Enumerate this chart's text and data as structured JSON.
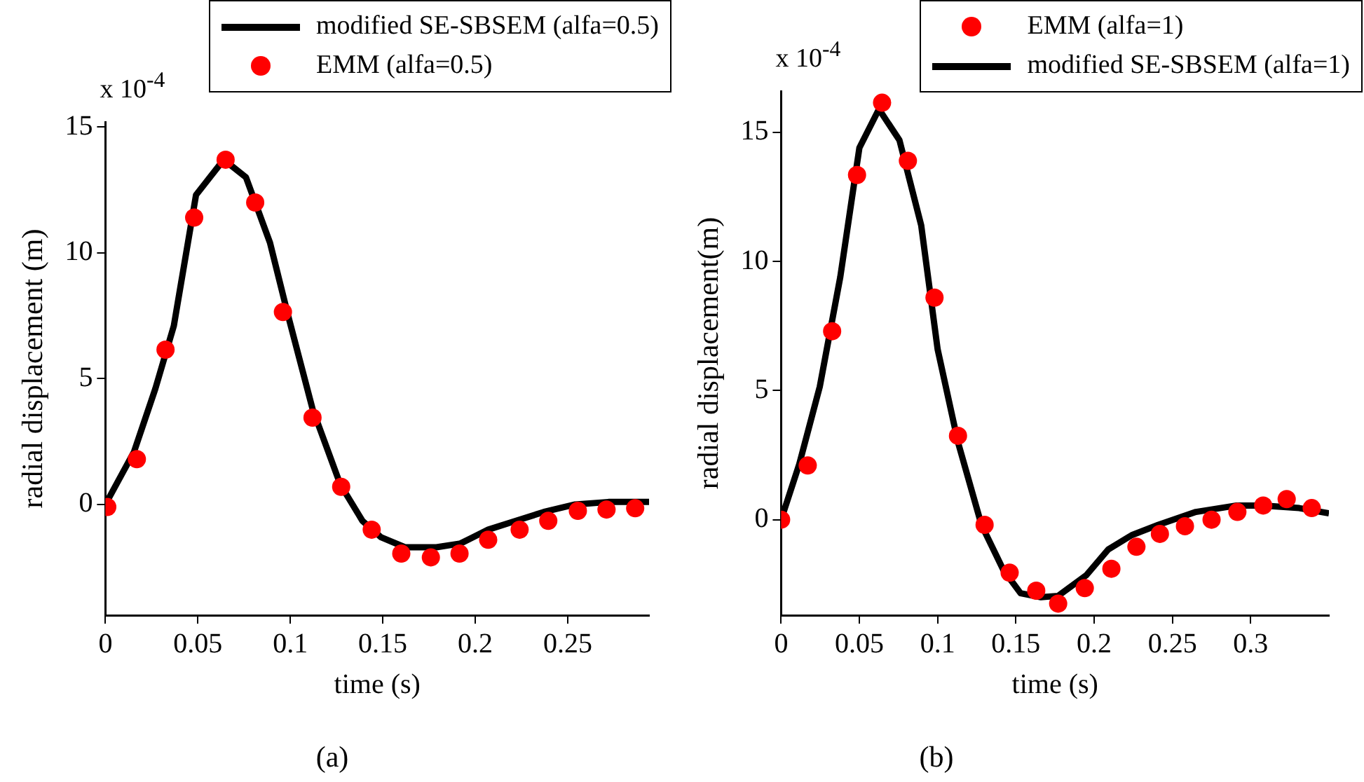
{
  "chart_data": [
    {
      "type": "line",
      "xlabel": "time (s)",
      "ylabel": "radial displacement (m)",
      "annotations": [
        "x 10$^{-4}$",
        "(a)"
      ],
      "xlim": [
        0,
        0.294
      ],
      "xticks": [
        0,
        0.05,
        0.1,
        0.15,
        0.2,
        0.25
      ],
      "ylim": [
        -4.4,
        15.2
      ],
      "yticks": [
        0,
        5,
        10,
        15
      ],
      "grid": false,
      "legend": "top right",
      "series": [
        {
          "name": "modified SE-SBSEM (alfa=0.5)",
          "marker": "none",
          "color": "#000000",
          "x": [
            0,
            0.0155,
            0.027,
            0.037,
            0.049,
            0.064,
            0.076,
            0.089,
            0.099,
            0.112,
            0.127,
            0.139,
            0.149,
            0.162,
            0.179,
            0.192,
            0.207,
            0.222,
            0.237,
            0.254,
            0.272,
            0.294
          ],
          "values": [
            0,
            2.1,
            4.6,
            7.1,
            12.3,
            13.7,
            13.0,
            10.4,
            7.45,
            3.8,
            0.8,
            -0.65,
            -1.3,
            -1.7,
            -1.7,
            -1.55,
            -1.0,
            -0.65,
            -0.3,
            0,
            0.1,
            0.1
          ]
        },
        {
          "name": "EMM (alfa=0.5)",
          "type": "scatter",
          "marker": "circle",
          "color": "#ff0000",
          "x": [
            0.001,
            0.017,
            0.0325,
            0.048,
            0.065,
            0.081,
            0.096,
            0.112,
            0.1275,
            0.144,
            0.16,
            0.176,
            0.1915,
            0.207,
            0.224,
            0.2395,
            0.2555,
            0.271,
            0.2865
          ],
          "values": [
            -0.1,
            1.8,
            6.15,
            11.4,
            13.7,
            12.0,
            7.65,
            3.45,
            0.7,
            -1.0,
            -1.95,
            -2.1,
            -1.95,
            -1.4,
            -1.0,
            -0.65,
            -0.25,
            -0.2,
            -0.15
          ]
        }
      ]
    },
    {
      "type": "line",
      "xlabel": "time (s)",
      "ylabel": "radial displacement(m)",
      "annotations": [
        "x 10$^{-4}$",
        "(b)"
      ],
      "xlim": [
        0,
        0.35
      ],
      "xticks": [
        0,
        0.05,
        0.1,
        0.15,
        0.2,
        0.25,
        0.3
      ],
      "ylim": [
        -3.7,
        16.6
      ],
      "yticks": [
        0,
        5,
        10,
        15
      ],
      "grid": false,
      "legend": "top right",
      "series": [
        {
          "name": "EMM (alfa=1)",
          "type": "scatter",
          "marker": "circle",
          "color": "#ff0000",
          "x": [
            0,
            0.017,
            0.0326,
            0.0485,
            0.0645,
            0.081,
            0.098,
            0.113,
            0.13,
            0.146,
            0.163,
            0.177,
            0.194,
            0.211,
            0.227,
            0.242,
            0.258,
            0.275,
            0.2915,
            0.308,
            0.323,
            0.339
          ],
          "values": [
            0,
            2.1,
            7.3,
            13.35,
            16.15,
            13.9,
            8.6,
            3.25,
            -0.2,
            -2.05,
            -2.75,
            -3.25,
            -2.65,
            -1.9,
            -1.05,
            -0.55,
            -0.25,
            0,
            0.3,
            0.55,
            0.8,
            0.45
          ]
        },
        {
          "name": "modified SE-SBSEM (alfa=1)",
          "marker": "none",
          "color": "#000000",
          "x": [
            0,
            0.0116,
            0.0247,
            0.0378,
            0.05,
            0.0625,
            0.0756,
            0.0895,
            0.1,
            0.113,
            0.128,
            0.142,
            0.153,
            0.166,
            0.177,
            0.195,
            0.209,
            0.224,
            0.241,
            0.265,
            0.291,
            0.308,
            0.331,
            0.35
          ],
          "values": [
            0,
            2.15,
            5.15,
            9.4,
            14.4,
            15.9,
            14.7,
            11.4,
            6.6,
            3.0,
            -0.2,
            -1.95,
            -2.85,
            -3.0,
            -2.95,
            -2.15,
            -1.15,
            -0.6,
            -0.2,
            0.3,
            0.55,
            0.55,
            0.45,
            0.25
          ]
        }
      ]
    }
  ]
}
